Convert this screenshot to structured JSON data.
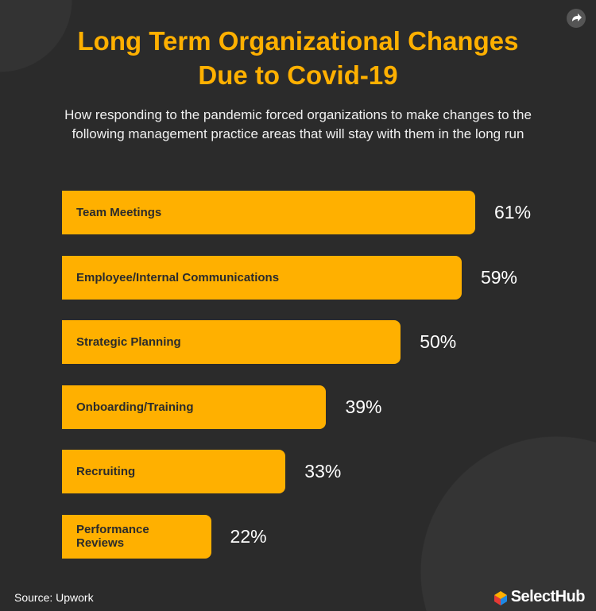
{
  "chart_data": {
    "type": "bar",
    "orientation": "horizontal",
    "title": "Long Term Organizational Changes Due to Covid-19",
    "subtitle": "How responding to the pandemic forced organizations to make changes to the following management practice areas that will stay with them in the long run",
    "categories": [
      "Team Meetings",
      "Employee/Internal Communications",
      "Strategic Planning",
      "Onboarding/Training",
      "Recruiting",
      "Performance Reviews"
    ],
    "values": [
      61,
      59,
      50,
      39,
      33,
      22
    ],
    "value_labels": [
      "61%",
      "59%",
      "50%",
      "39%",
      "33%",
      "22%"
    ],
    "color": "#ffb000"
  },
  "footer": {
    "source": "Source: Upwork",
    "brand": "SelectHub"
  }
}
